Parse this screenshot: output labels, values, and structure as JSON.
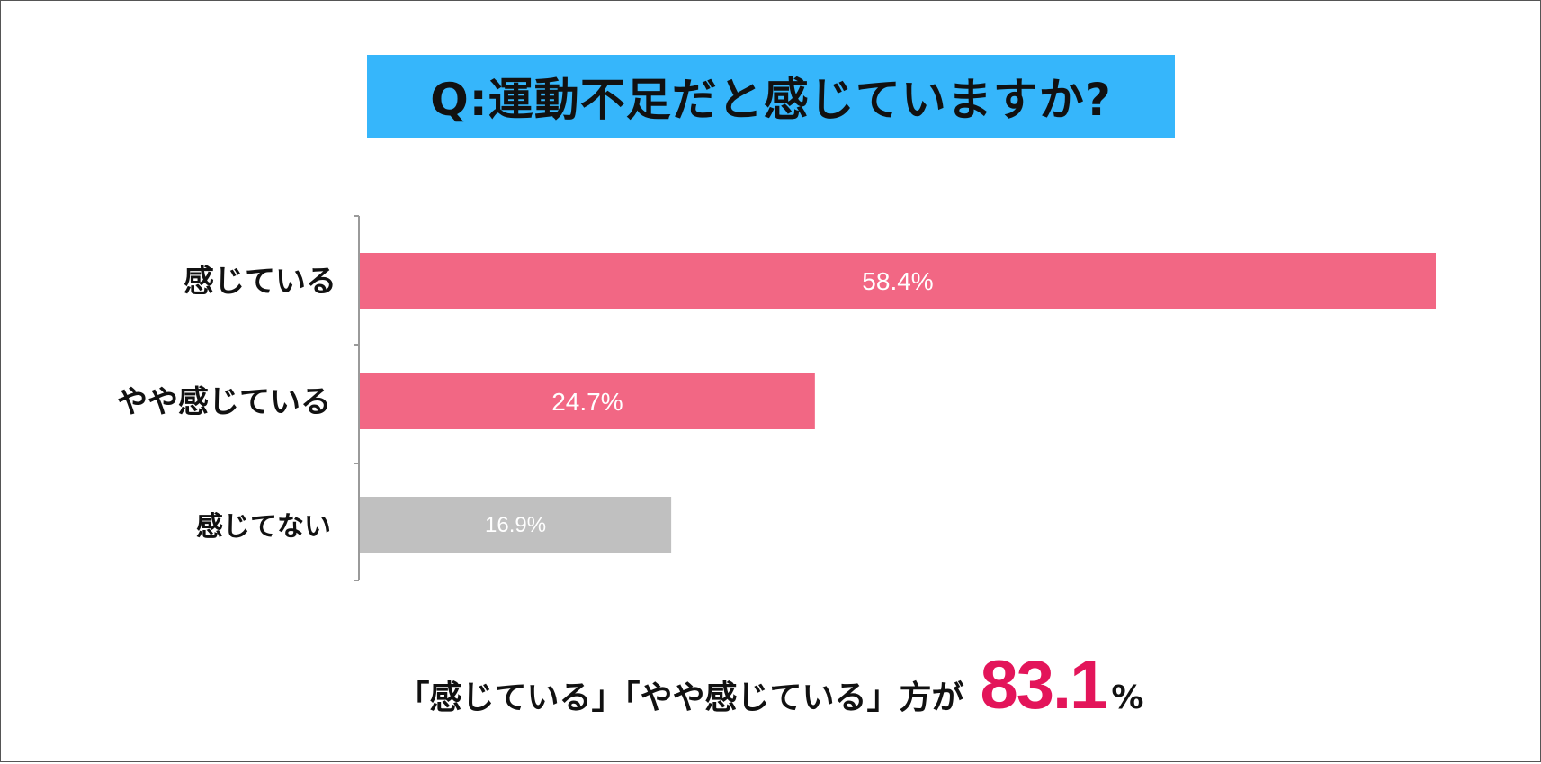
{
  "title": "Q:運動不足だと感じていますか?",
  "chart_data": {
    "type": "bar",
    "orientation": "horizontal",
    "categories": [
      "感じている",
      "やや感じている",
      "感じてない"
    ],
    "values": [
      58.4,
      24.7,
      16.9
    ],
    "data_labels": [
      "58.4%",
      "24.7%",
      "16.9%"
    ],
    "colors": [
      "#f26784",
      "#f26784",
      "#c0c0c0"
    ],
    "xlim": [
      0,
      58.4
    ],
    "grid": false
  },
  "summary": {
    "text": "「感じている」「やや感じている」方が",
    "value": "83.1",
    "unit": "%"
  },
  "colors": {
    "title_bg": "#36b6fb",
    "highlight": "#e3155a"
  }
}
